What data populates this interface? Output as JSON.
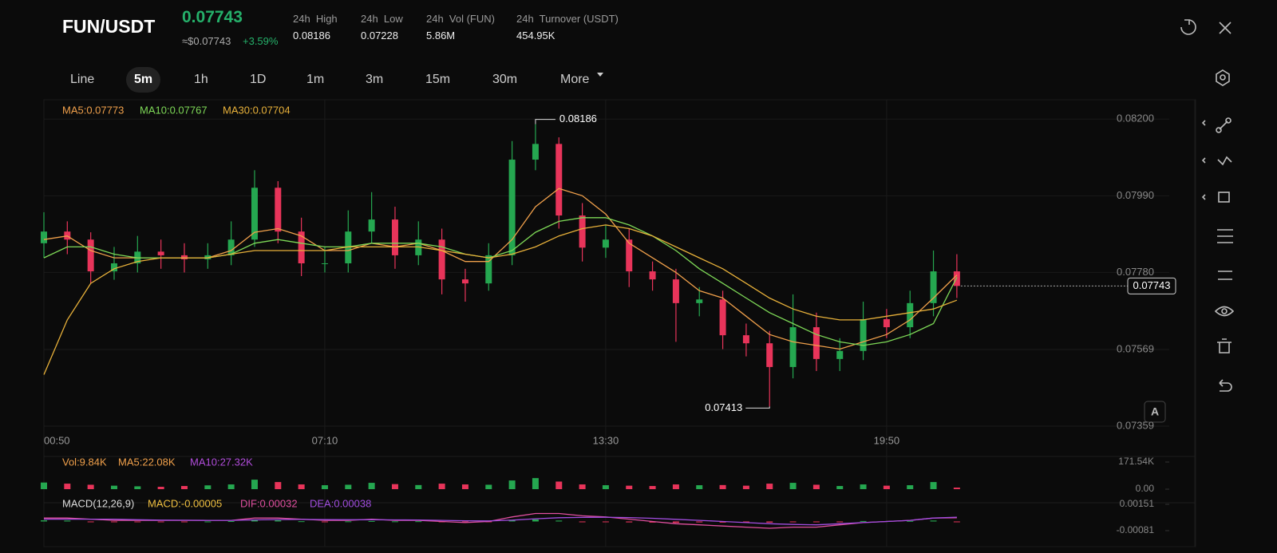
{
  "header": {
    "pair": "FUN/USDT",
    "price": "0.07743",
    "usd": "≈$0.07743",
    "change": "+3.59%",
    "stats": [
      {
        "label": "24h  High",
        "value": "0.08186"
      },
      {
        "label": "24h  Low",
        "value": "0.07228"
      },
      {
        "label": "24h  Vol (FUN)",
        "value": "5.86M"
      },
      {
        "label": "24h  Turnover (USDT)",
        "value": "454.95K"
      }
    ]
  },
  "intervals": [
    "Line",
    "5m",
    "1h",
    "1D",
    "1m",
    "3m",
    "15m",
    "30m",
    "More"
  ],
  "chart_data": {
    "type": "candlestick",
    "categories": [
      "00:50",
      null,
      null,
      null,
      null,
      null,
      null,
      null,
      null,
      null,
      null,
      null,
      "07:10",
      null,
      null,
      null,
      null,
      null,
      null,
      null,
      null,
      null,
      null,
      null,
      "13:30",
      null,
      null,
      null,
      null,
      null,
      null,
      null,
      null,
      null,
      null,
      null,
      "19:50",
      null,
      null,
      null
    ],
    "open": [
      0.0786,
      0.07892,
      0.0787,
      0.07783,
      0.07805,
      0.07837,
      0.07827,
      0.07816,
      0.07827,
      0.0787,
      0.08012,
      0.07892,
      0.07805,
      0.07805,
      0.07892,
      0.07925,
      0.07827,
      0.0787,
      0.07761,
      0.0775,
      0.07827,
      0.08089,
      0.08132,
      0.07936,
      0.07848,
      0.0787,
      0.07783,
      0.07761,
      0.07696,
      0.07706,
      0.07608,
      0.07586,
      0.07521,
      0.0763,
      0.07543,
      0.07565,
      0.07652,
      0.0763,
      0.07696,
      0.07783
    ],
    "high": [
      0.07945,
      0.0792,
      0.0789,
      0.0785,
      0.0788,
      0.0787,
      0.0786,
      0.0786,
      0.0792,
      0.0806,
      0.0803,
      0.0793,
      0.0785,
      0.0795,
      0.08,
      0.0796,
      0.0792,
      0.079,
      0.0779,
      0.0786,
      0.0814,
      0.08186,
      0.0815,
      0.0797,
      0.0791,
      0.079,
      0.0781,
      0.0779,
      0.0774,
      0.0773,
      0.0764,
      0.0762,
      0.0772,
      0.0767,
      0.076,
      0.077,
      0.0768,
      0.0773,
      0.0784,
      0.0783
    ],
    "low": [
      0.0782,
      0.0783,
      0.0775,
      0.0776,
      0.0778,
      0.0779,
      0.0778,
      0.0779,
      0.078,
      0.0785,
      0.0786,
      0.0777,
      0.0778,
      0.0778,
      0.0786,
      0.0779,
      0.078,
      0.0772,
      0.077,
      0.0773,
      0.078,
      0.0806,
      0.079,
      0.0781,
      0.0782,
      0.0774,
      0.0773,
      0.0759,
      0.0766,
      0.0757,
      0.0755,
      0.07413,
      0.0749,
      0.0751,
      0.0751,
      0.0754,
      0.076,
      0.076,
      0.0766,
      0.0771
    ],
    "close": [
      0.07892,
      0.0787,
      0.07783,
      0.07805,
      0.07837,
      0.07827,
      0.07816,
      0.07827,
      0.0787,
      0.08012,
      0.07892,
      0.07805,
      0.07805,
      0.07892,
      0.07925,
      0.07827,
      0.0787,
      0.07761,
      0.0775,
      0.07827,
      0.08089,
      0.08132,
      0.07936,
      0.07848,
      0.0787,
      0.07783,
      0.07761,
      0.07696,
      0.07706,
      0.07608,
      0.07586,
      0.07521,
      0.0763,
      0.07543,
      0.07565,
      0.07652,
      0.0763,
      0.07696,
      0.07783,
      0.07743
    ],
    "up_color": "#25a750",
    "down_color": "#e8345a",
    "series": [
      {
        "name": "MA5:0.07773",
        "color": "#f0a04b",
        "values": [
          0.0787,
          0.0788,
          0.0784,
          0.0782,
          0.0782,
          0.0782,
          0.0782,
          0.0782,
          0.0784,
          0.0789,
          0.079,
          0.0788,
          0.0784,
          0.0784,
          0.0786,
          0.0785,
          0.0786,
          0.0784,
          0.0781,
          0.0781,
          0.0787,
          0.0796,
          0.0801,
          0.0799,
          0.0794,
          0.0786,
          0.0782,
          0.0778,
          0.0773,
          0.0771,
          0.0766,
          0.0761,
          0.0759,
          0.0758,
          0.0757,
          0.0759,
          0.0761,
          0.0765,
          0.0771,
          0.07773
        ]
      },
      {
        "name": "MA10:0.07767",
        "color": "#7ed957",
        "values": [
          0.0782,
          0.0785,
          0.0785,
          0.0783,
          0.0782,
          0.0782,
          0.0782,
          0.0782,
          0.0783,
          0.0786,
          0.0787,
          0.0786,
          0.0785,
          0.0785,
          0.0786,
          0.0786,
          0.0786,
          0.0785,
          0.0783,
          0.0782,
          0.0784,
          0.0789,
          0.0792,
          0.0793,
          0.0793,
          0.0791,
          0.0788,
          0.0784,
          0.0779,
          0.0775,
          0.0771,
          0.0767,
          0.0764,
          0.0761,
          0.0759,
          0.0758,
          0.0759,
          0.0761,
          0.0764,
          0.07767
        ]
      },
      {
        "name": "MA30:0.07704",
        "color": "#e8b13a",
        "values": [
          0.075,
          0.0765,
          0.0775,
          0.0779,
          0.0781,
          0.0782,
          0.0782,
          0.0782,
          0.0783,
          0.0784,
          0.0784,
          0.0784,
          0.0784,
          0.0785,
          0.0785,
          0.0785,
          0.0785,
          0.0784,
          0.0783,
          0.0782,
          0.0783,
          0.0785,
          0.0788,
          0.079,
          0.0791,
          0.079,
          0.0788,
          0.0785,
          0.0782,
          0.0779,
          0.0775,
          0.0771,
          0.0768,
          0.0766,
          0.0765,
          0.0765,
          0.0766,
          0.0767,
          0.0768,
          0.07704
        ]
      }
    ],
    "ylim": [
      0.07346,
      0.08253
    ],
    "yticks": [
      {
        "value": 0.082,
        "label": "0.08200"
      },
      {
        "value": 0.0799,
        "label": "0.07990"
      },
      {
        "value": 0.0778,
        "label": "0.07780"
      },
      0.07569,
      0.07359
    ],
    "grid": true,
    "high_label": "0.08186",
    "low_label": "0.07413",
    "last_price_label": "0.07743",
    "volume": {
      "legend": [
        "Vol:9.84K",
        "MA5:22.08K",
        "MA10:27.32K"
      ],
      "values": [
        42000,
        35000,
        28000,
        22000,
        18000,
        15000,
        20000,
        24000,
        30000,
        60000,
        45000,
        30000,
        25000,
        28000,
        40000,
        32000,
        26000,
        35000,
        30000,
        28000,
        55000,
        70000,
        48000,
        30000,
        25000,
        22000,
        20000,
        30000,
        25000,
        26000,
        22000,
        35000,
        40000,
        28000,
        20000,
        30000,
        22000,
        25000,
        45000,
        9840
      ],
      "ylim": [
        0,
        171540
      ],
      "yticks": [
        {
          "value": 171540,
          "label": "171.54K"
        },
        {
          "value": 0,
          "label": "0.00"
        }
      ]
    },
    "macd": {
      "legend": [
        "MACD(12,26,9)",
        "MACD:-0.00005",
        "DIF:0.00032",
        "DEA:0.00038"
      ],
      "hist": [
        0.0001,
        8e-05,
        -5e-05,
        -6e-05,
        -4e-05,
        -2e-05,
        -1e-05,
        0,
        3e-05,
        0.00012,
        0.0001,
        2e-05,
        -2e-05,
        1e-05,
        4e-05,
        1e-05,
        2e-05,
        -4e-05,
        -6e-05,
        -2e-05,
        0.00012,
        0.00018,
        8e-05,
        -2e-05,
        -4e-05,
        -8e-05,
        -0.0001,
        -0.00012,
        -8e-05,
        -0.0001,
        -9e-05,
        -0.0001,
        -2e-05,
        -5e-05,
        -2e-05,
        4e-05,
        3e-05,
        5e-05,
        8e-05,
        -5e-05
      ],
      "dif": [
        0.0003,
        0.0003,
        0.0002,
        0.0001,
        0.0001,
        0.0001,
        0.0001,
        0.0001,
        0.0001,
        0.0003,
        0.0003,
        0.0002,
        0.0001,
        0.0001,
        0.0002,
        0.0001,
        0.0001,
        0,
        -0.0001,
        0,
        0.0004,
        0.0007,
        0.0007,
        0.0005,
        0.0004,
        0.0002,
        0,
        -0.0002,
        -0.0003,
        -0.0004,
        -0.0005,
        -0.0006,
        -0.0005,
        -0.0005,
        -0.0003,
        -0.0001,
        0,
        0.0001,
        0.0003,
        0.00032
      ],
      "dea": [
        0.0002,
        0.0002,
        0.0002,
        0.0002,
        0.00015,
        0.00012,
        0.00011,
        0.0001,
        0.0001,
        0.00014,
        0.00017,
        0.00018,
        0.00016,
        0.00015,
        0.00015,
        0.00014,
        0.00013,
        0.0001,
        6e-05,
        5e-05,
        0.00012,
        0.00024,
        0.00033,
        0.00036,
        0.00037,
        0.00034,
        0.00028,
        0.00019,
        0.0001,
        0,
        -0.0001,
        -0.0002,
        -0.00026,
        -0.0003,
        -0.0002,
        -0.0001,
        0,
        0.0001,
        0.0003,
        0.00038
      ],
      "ylim": [
        -0.00081,
        0.00151
      ],
      "yticks": [
        0.00151,
        -0.00081
      ]
    }
  }
}
